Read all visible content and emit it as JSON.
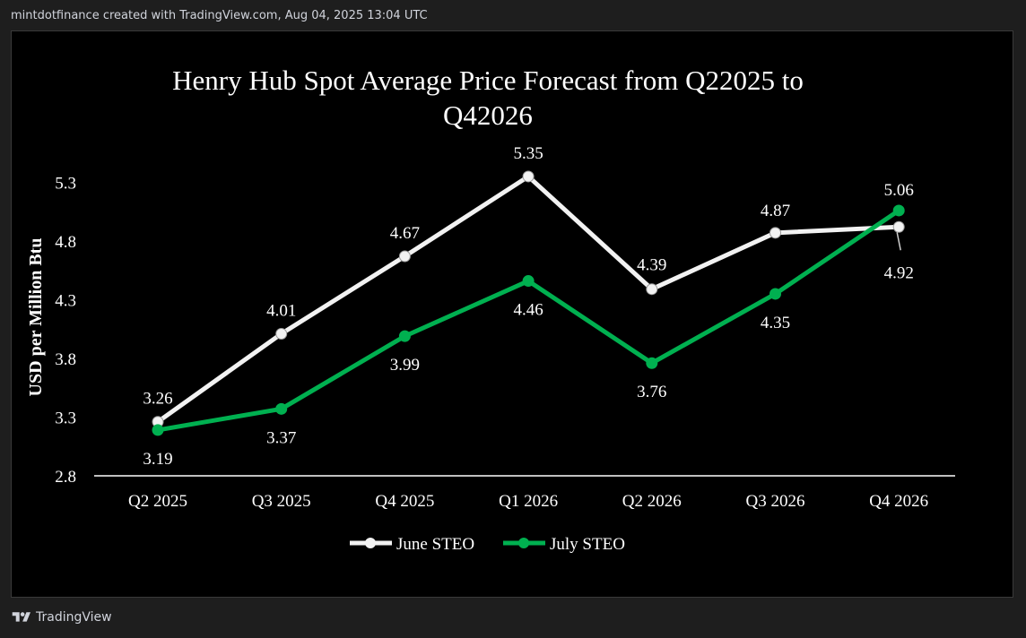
{
  "header": {
    "text": "mintdotfinance created with TradingView.com, Aug 04, 2025 13:04 UTC"
  },
  "footer": {
    "brand": "TradingView",
    "logo_icon": "tradingview-logo-icon"
  },
  "colors": {
    "background": "#000000",
    "june_series": "#f2f2f2",
    "july_series": "#00b050",
    "text": "#ffffff",
    "axis": "#ffffff"
  },
  "chart_data": {
    "type": "line",
    "title": "Henry Hub Spot Average Price Forecast from Q22025 to Q42026",
    "title_lines": [
      "Henry Hub Spot Average Price Forecast from Q22025 to",
      "Q42026"
    ],
    "xlabel": "",
    "ylabel": "USD per Million Btu",
    "categories": [
      "Q2 2025",
      "Q3 2025",
      "Q4 2025",
      "Q1 2026",
      "Q2 2026",
      "Q3 2026",
      "Q4 2026"
    ],
    "y_ticks": [
      "2.8",
      "3.3",
      "3.8",
      "4.3",
      "4.8",
      "5.3"
    ],
    "ylim": [
      2.8,
      5.4
    ],
    "grid": false,
    "legend_position": "bottom",
    "series": [
      {
        "name": "June STEO",
        "values": [
          3.26,
          4.01,
          4.67,
          5.35,
          4.39,
          4.87,
          4.92
        ],
        "labels": [
          "3.26",
          "4.01",
          "4.67",
          "5.35",
          "4.39",
          "4.87",
          "4.92"
        ]
      },
      {
        "name": "July STEO",
        "values": [
          3.19,
          3.37,
          3.99,
          4.46,
          3.76,
          4.35,
          5.06
        ],
        "labels": [
          "3.19",
          "3.37",
          "3.99",
          "4.46",
          "3.76",
          "4.35",
          "5.06"
        ]
      }
    ]
  }
}
